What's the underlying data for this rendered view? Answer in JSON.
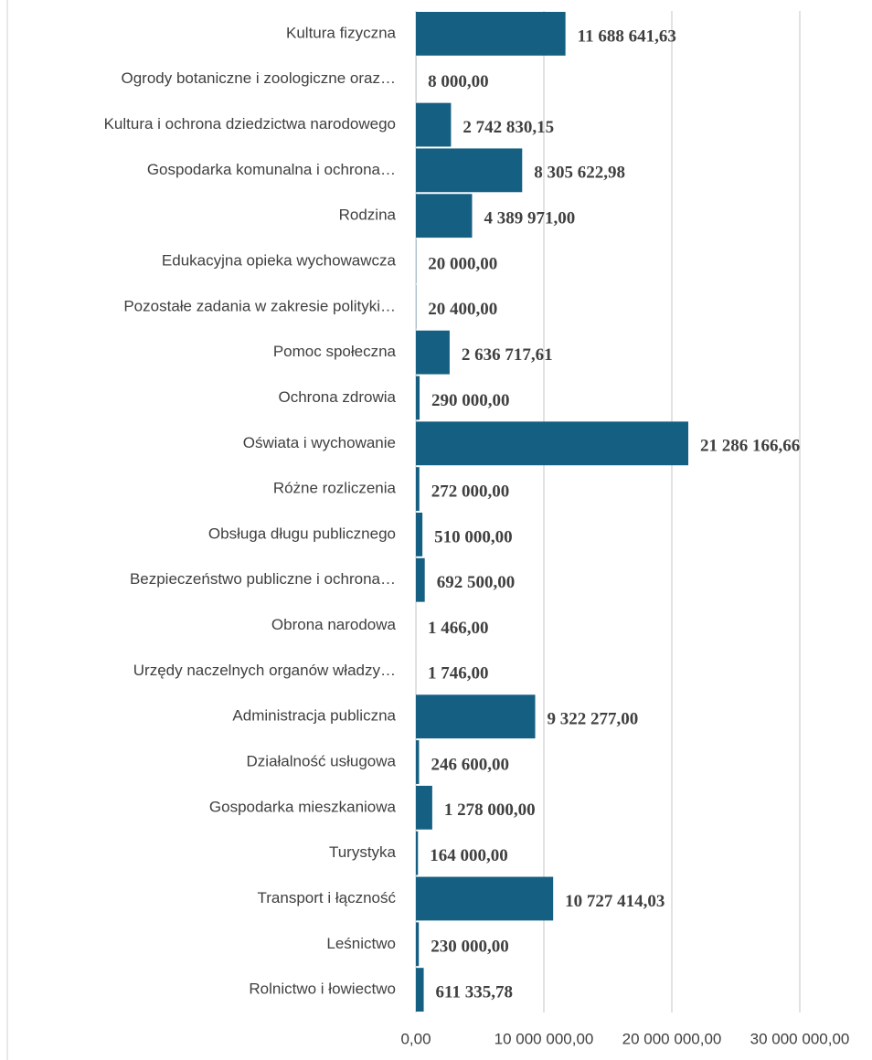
{
  "chart_data": {
    "type": "hbar",
    "categories": [
      "Kultura fizyczna",
      "Ogrody botaniczne i zoologiczne oraz…",
      "Kultura i ochrona dziedzictwa narodowego",
      "Gospodarka komunalna i ochrona…",
      "Rodzina",
      "Edukacyjna opieka wychowawcza",
      "Pozostałe zadania w zakresie polityki…",
      "Pomoc społeczna",
      "Ochrona zdrowia",
      "Oświata i wychowanie",
      "Różne rozliczenia",
      "Obsługa długu publicznego",
      "Bezpieczeństwo publiczne i ochrona…",
      "Obrona narodowa",
      "Urzędy naczelnych organów władzy…",
      "Administracja publiczna",
      "Działalność usługowa",
      "Gospodarka mieszkaniowa",
      "Turystyka",
      "Transport i łączność",
      "Leśnictwo",
      "Rolnictwo i łowiectwo"
    ],
    "values": [
      11688641.63,
      8000,
      2742830.15,
      8305622.98,
      4389971,
      20000,
      20400,
      2636717.61,
      290000,
      21286166.66,
      272000,
      510000,
      692500,
      1466,
      1746,
      9322277,
      246600,
      1278000,
      164000,
      10727414.03,
      230000,
      611335.78
    ],
    "value_labels": [
      "11 688 641,63",
      "8 000,00",
      "2 742 830,15",
      "8 305 622,98",
      "4 389 971,00",
      "20 000,00",
      "20 400,00",
      "2 636 717,61",
      "290 000,00",
      "21 286 166,66",
      "272 000,00",
      "510 000,00",
      "692 500,00",
      "1 466,00",
      "1 746,00",
      "9 322 277,00",
      "246 600,00",
      "1 278 000,00",
      "164 000,00",
      "10 727 414,03",
      "230 000,00",
      "611 335,78"
    ],
    "color": "#155f82",
    "xlim": [
      0,
      30000000
    ],
    "xticks": [
      {
        "value": 0,
        "label": "0,00"
      },
      {
        "value": 10000000,
        "label": "10 000 000,00"
      },
      {
        "value": 20000000,
        "label": "20 000 000,00"
      },
      {
        "value": 30000000,
        "label": "30 000 000,00"
      }
    ],
    "grid": true
  }
}
